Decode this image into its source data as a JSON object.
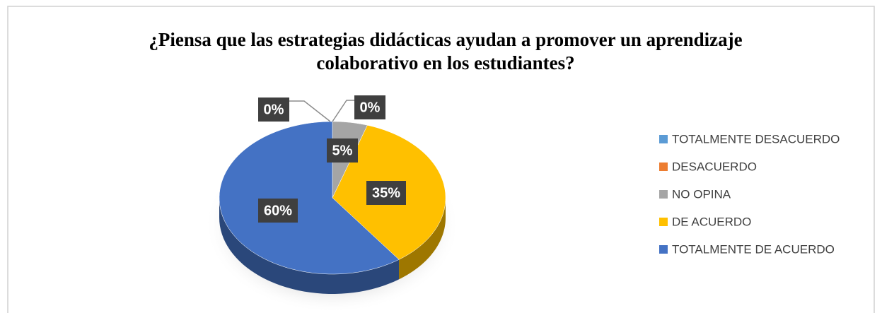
{
  "chart_data": {
    "type": "pie",
    "title": "¿Piensa que las estrategias didácticas ayudan a promover un aprendizaje colaborativo en los estudiantes?",
    "categories": [
      "TOTALMENTE DESACUERDO",
      "DESACUERDO",
      "NO OPINA",
      "DE ACUERDO",
      "TOTALMENTE DE ACUERDO"
    ],
    "values": [
      0,
      0,
      5,
      35,
      60
    ],
    "value_labels": [
      "0%",
      "0%",
      "5%",
      "35%",
      "60%"
    ],
    "colors": [
      "#5b9bd5",
      "#ed7d31",
      "#a5a5a5",
      "#ffc000",
      "#4472c4"
    ],
    "legend": "right"
  }
}
